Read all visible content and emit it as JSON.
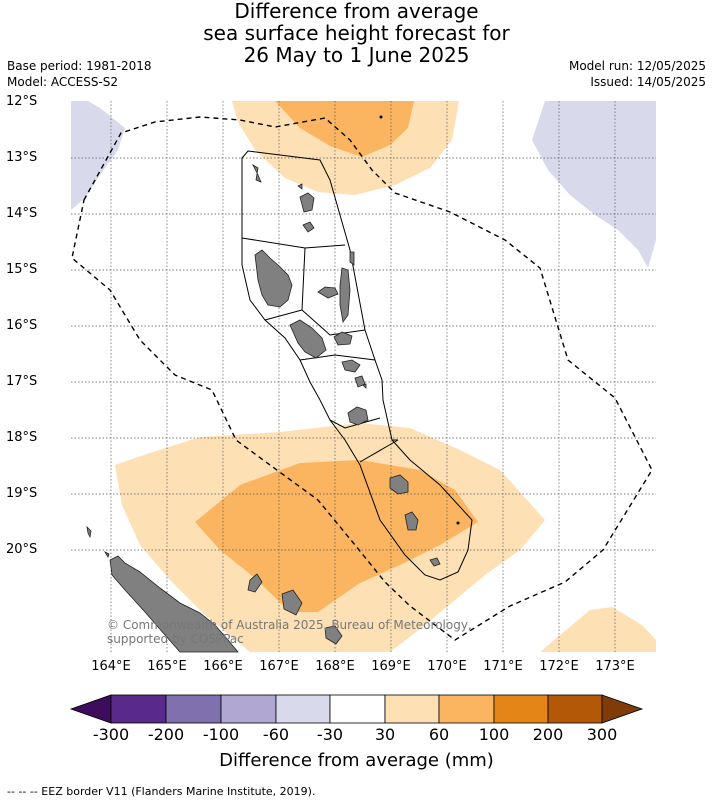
{
  "title": {
    "line1": "Difference from average",
    "line2": "sea surface height forecast for",
    "line3": "26 May to 1 June 2025"
  },
  "meta": {
    "base_period": "Base period: 1981-2018",
    "model": "Model: ACCESS-S2",
    "model_run": "Model run: 12/05/2025",
    "issued": "Issued: 14/05/2025"
  },
  "lat_labels": [
    "12°S",
    "13°S",
    "14°S",
    "15°S",
    "16°S",
    "17°S",
    "18°S",
    "19°S",
    "20°S"
  ],
  "lon_labels": [
    "164°E",
    "165°E",
    "166°E",
    "167°E",
    "168°E",
    "169°E",
    "170°E",
    "171°E",
    "172°E",
    "173°E"
  ],
  "copyright": "© Commonwealth of Australia 2025, Bureau of Meteorology, supported by COSPPac",
  "colorbar": {
    "title": "Difference from average (mm)",
    "ticks": [
      "-300",
      "-200",
      "-100",
      "-60",
      "-30",
      "30",
      "60",
      "100",
      "200",
      "300"
    ],
    "colors": [
      "#3d0c5c",
      "#5a2a8a",
      "#8070ae",
      "#b0a8d2",
      "#d9d9ec",
      "#ffffff",
      "#fde0b4",
      "#fbb560",
      "#e48518",
      "#b35806",
      "#7f3b08"
    ]
  },
  "footer": "--  --  -- EEZ border V11 (Flanders Marine Institute, 2019).",
  "colors": {
    "land": "#808080",
    "light_purple": "#d9d9ec",
    "light_orange": "#fde0b4",
    "mid_orange": "#fbb560"
  }
}
